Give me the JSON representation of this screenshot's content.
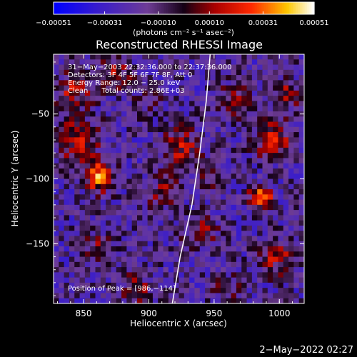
{
  "chart_data": {
    "type": "heatmap",
    "title": "Reconstructed RHESSI Image",
    "xlabel": "Heliocentric X (arcsec)",
    "ylabel": "Heliocentric Y (arcsec)",
    "xlim": [
      827,
      1019
    ],
    "ylim": [
      -196,
      -4
    ],
    "x_ticks": [
      850,
      900,
      950,
      1000
    ],
    "x_tick_labels": [
      "850",
      "900",
      "950",
      "1000"
    ],
    "y_ticks": [
      -50,
      -100,
      -150
    ],
    "y_tick_labels": [
      "−50",
      "−100",
      "−150"
    ],
    "colorbar": {
      "range": [
        -0.00051,
        0.00051
      ],
      "ticks": [
        -0.00051,
        -0.00031,
        -0.0001,
        0.0001,
        0.00031,
        0.00051
      ],
      "tick_labels": [
        "−0.00051",
        "−0.00031",
        "−0.00010",
        "0.00010",
        "0.00031",
        "0.00051"
      ],
      "unit_label": "(photons cm⁻² s⁻¹ asec⁻²)"
    },
    "info_lines": [
      "31−May−2003 22:32:36.000 to 22:37:36.000",
      "Detectors: 3F 4F 5F 6F 7F 8F, Att 0",
      "Energy Range: 12.0 − 25.0 keV",
      "Clean      Total counts: 2.86E+03"
    ],
    "peak_label": "Position of Peak = [986,−114]",
    "peak": [
      986,
      -114
    ],
    "blobs": [
      {
        "x": 862,
        "y": -98,
        "sigma": 8,
        "amp": 0.00048
      },
      {
        "x": 845,
        "y": -70,
        "sigma": 12,
        "amp": 0.0003
      },
      {
        "x": 843,
        "y": -32,
        "sigma": 10,
        "amp": 0.00026
      },
      {
        "x": 875,
        "y": -18,
        "sigma": 9,
        "amp": 0.00025
      },
      {
        "x": 925,
        "y": -75,
        "sigma": 11,
        "amp": 0.00028
      },
      {
        "x": 912,
        "y": -110,
        "sigma": 9,
        "amp": 0.00022
      },
      {
        "x": 940,
        "y": -140,
        "sigma": 10,
        "amp": 0.0002
      },
      {
        "x": 986,
        "y": -114,
        "sigma": 6,
        "amp": 0.00051
      },
      {
        "x": 995,
        "y": -70,
        "sigma": 10,
        "amp": 0.00034
      },
      {
        "x": 1005,
        "y": -35,
        "sigma": 8,
        "amp": 0.00026
      },
      {
        "x": 965,
        "y": -40,
        "sigma": 9,
        "amp": 0.00022
      },
      {
        "x": 998,
        "y": -160,
        "sigma": 10,
        "amp": 0.00026
      },
      {
        "x": 860,
        "y": -155,
        "sigma": 9,
        "amp": 0.0002
      },
      {
        "x": 890,
        "y": -185,
        "sigma": 10,
        "amp": 0.00018
      },
      {
        "x": 960,
        "y": -185,
        "sigma": 8,
        "amp": 0.00016
      },
      {
        "x": 900,
        "y": -40,
        "sigma": 8,
        "amp": 0.00014
      },
      {
        "x": 950,
        "y": -100,
        "sigma": 7,
        "amp": 0.00018
      }
    ],
    "limb_curve": [
      [
        947,
        -4
      ],
      [
        944,
        -40
      ],
      [
        939,
        -80
      ],
      [
        933,
        -120
      ],
      [
        924,
        -160
      ],
      [
        918,
        -196
      ]
    ]
  },
  "footer": {
    "timestamp": "2−May−2022 02:27"
  },
  "colors": {
    "limb": "#ffffff",
    "background": "#000000"
  }
}
